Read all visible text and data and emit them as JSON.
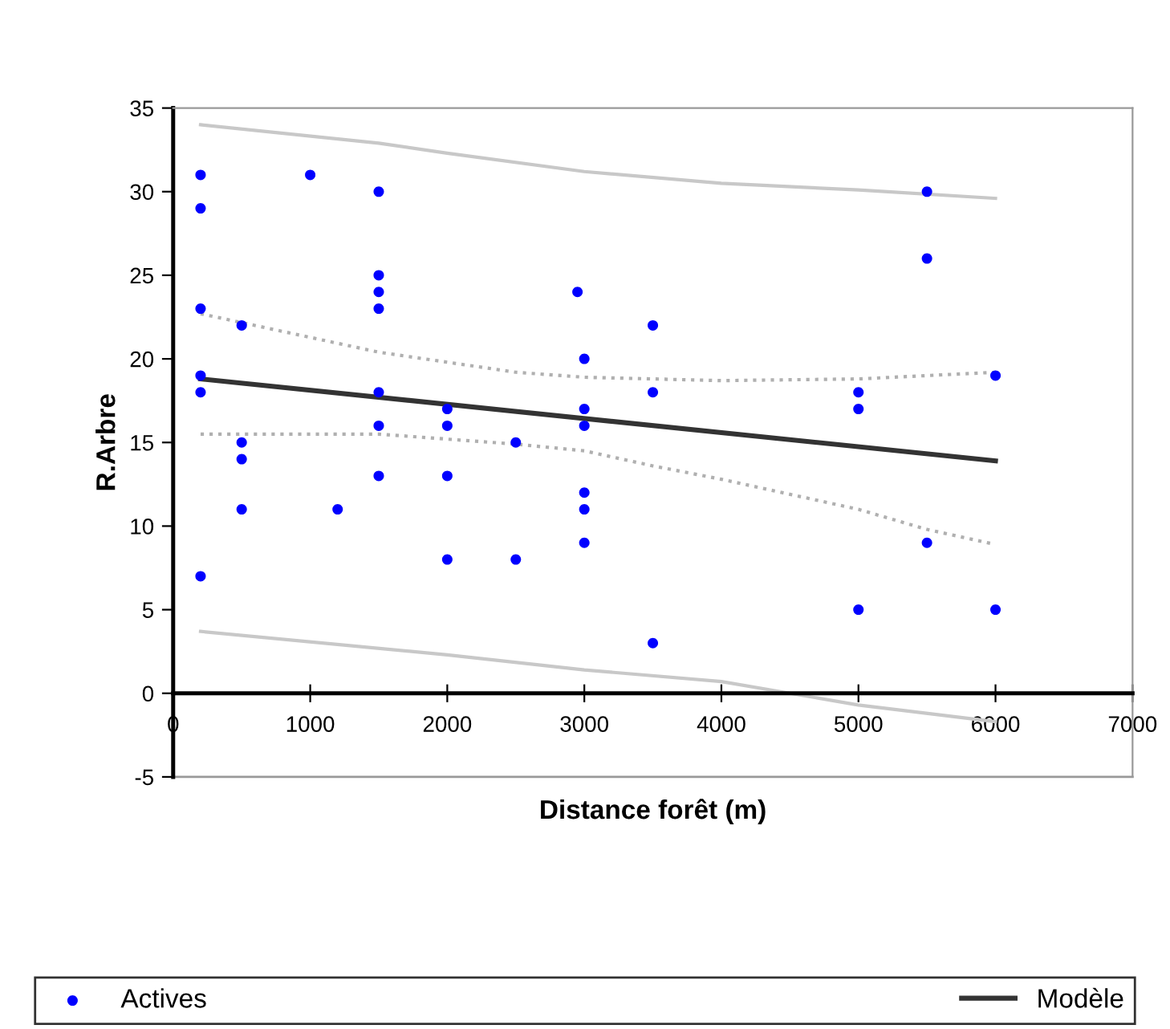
{
  "chart_data": {
    "type": "scatter",
    "xlabel": "Distance forêt (m)",
    "ylabel": "R.Arbre",
    "xlim": [
      0,
      7000
    ],
    "xticks": [
      0,
      1000,
      2000,
      3000,
      4000,
      5000,
      6000,
      7000
    ],
    "ylim": [
      -5,
      35
    ],
    "yticks": [
      -5,
      0,
      5,
      10,
      15,
      20,
      25,
      30,
      35
    ],
    "grid": false,
    "legend": "bottom",
    "series": [
      {
        "name": "Actives",
        "marker": "circle",
        "color": "#0000ff",
        "x": [
          200,
          200,
          200,
          200,
          200,
          200,
          500,
          500,
          500,
          500,
          1000,
          1200,
          1500,
          1500,
          1500,
          1500,
          1500,
          1500,
          1500,
          2000,
          2000,
          2000,
          2000,
          2500,
          2500,
          2950,
          3000,
          3000,
          3000,
          3000,
          3000,
          3000,
          3500,
          3500,
          3500,
          5000,
          5000,
          5000,
          5500,
          5500,
          5500,
          6000,
          6000
        ],
        "values": [
          31,
          29,
          23,
          19,
          18,
          7,
          22,
          15,
          14,
          11,
          31,
          11,
          30,
          25,
          24,
          23,
          18,
          16,
          13,
          17,
          16,
          13,
          8,
          15,
          8,
          24,
          20,
          17,
          16,
          12,
          11,
          9,
          22,
          18,
          3,
          18,
          17,
          5,
          30,
          26,
          9,
          19,
          5
        ]
      },
      {
        "name": "Modèle",
        "type": "line",
        "color": "#333333",
        "line_style": "solid",
        "x": [
          200,
          6000
        ],
        "values": [
          18.8,
          13.9
        ]
      },
      {
        "type": "line",
        "color": "#b0b0b0",
        "line_style": "dotted",
        "x": [
          200,
          1500,
          2500,
          3000,
          4000,
          5000,
          6000
        ],
        "values": [
          22.7,
          20.4,
          19.2,
          18.9,
          18.7,
          18.8,
          19.2
        ]
      },
      {
        "type": "line",
        "color": "#b0b0b0",
        "line_style": "dotted",
        "x": [
          200,
          1500,
          2500,
          3000,
          3500,
          4000,
          5000,
          5500,
          6000
        ],
        "values": [
          15.5,
          15.5,
          14.9,
          14.5,
          13.6,
          12.8,
          11.0,
          9.8,
          8.9
        ]
      },
      {
        "type": "line",
        "color": "#c8c8c8",
        "line_style": "solid",
        "x": [
          200,
          1500,
          2000,
          3000,
          4000,
          5000,
          6000
        ],
        "values": [
          34.0,
          32.9,
          32.3,
          31.2,
          30.5,
          30.1,
          29.6
        ]
      },
      {
        "type": "line",
        "color": "#c8c8c8",
        "line_style": "solid",
        "x": [
          200,
          2000,
          3000,
          4000,
          5000,
          6000
        ],
        "values": [
          3.7,
          2.3,
          1.4,
          0.7,
          -0.7,
          -1.7
        ]
      }
    ]
  }
}
